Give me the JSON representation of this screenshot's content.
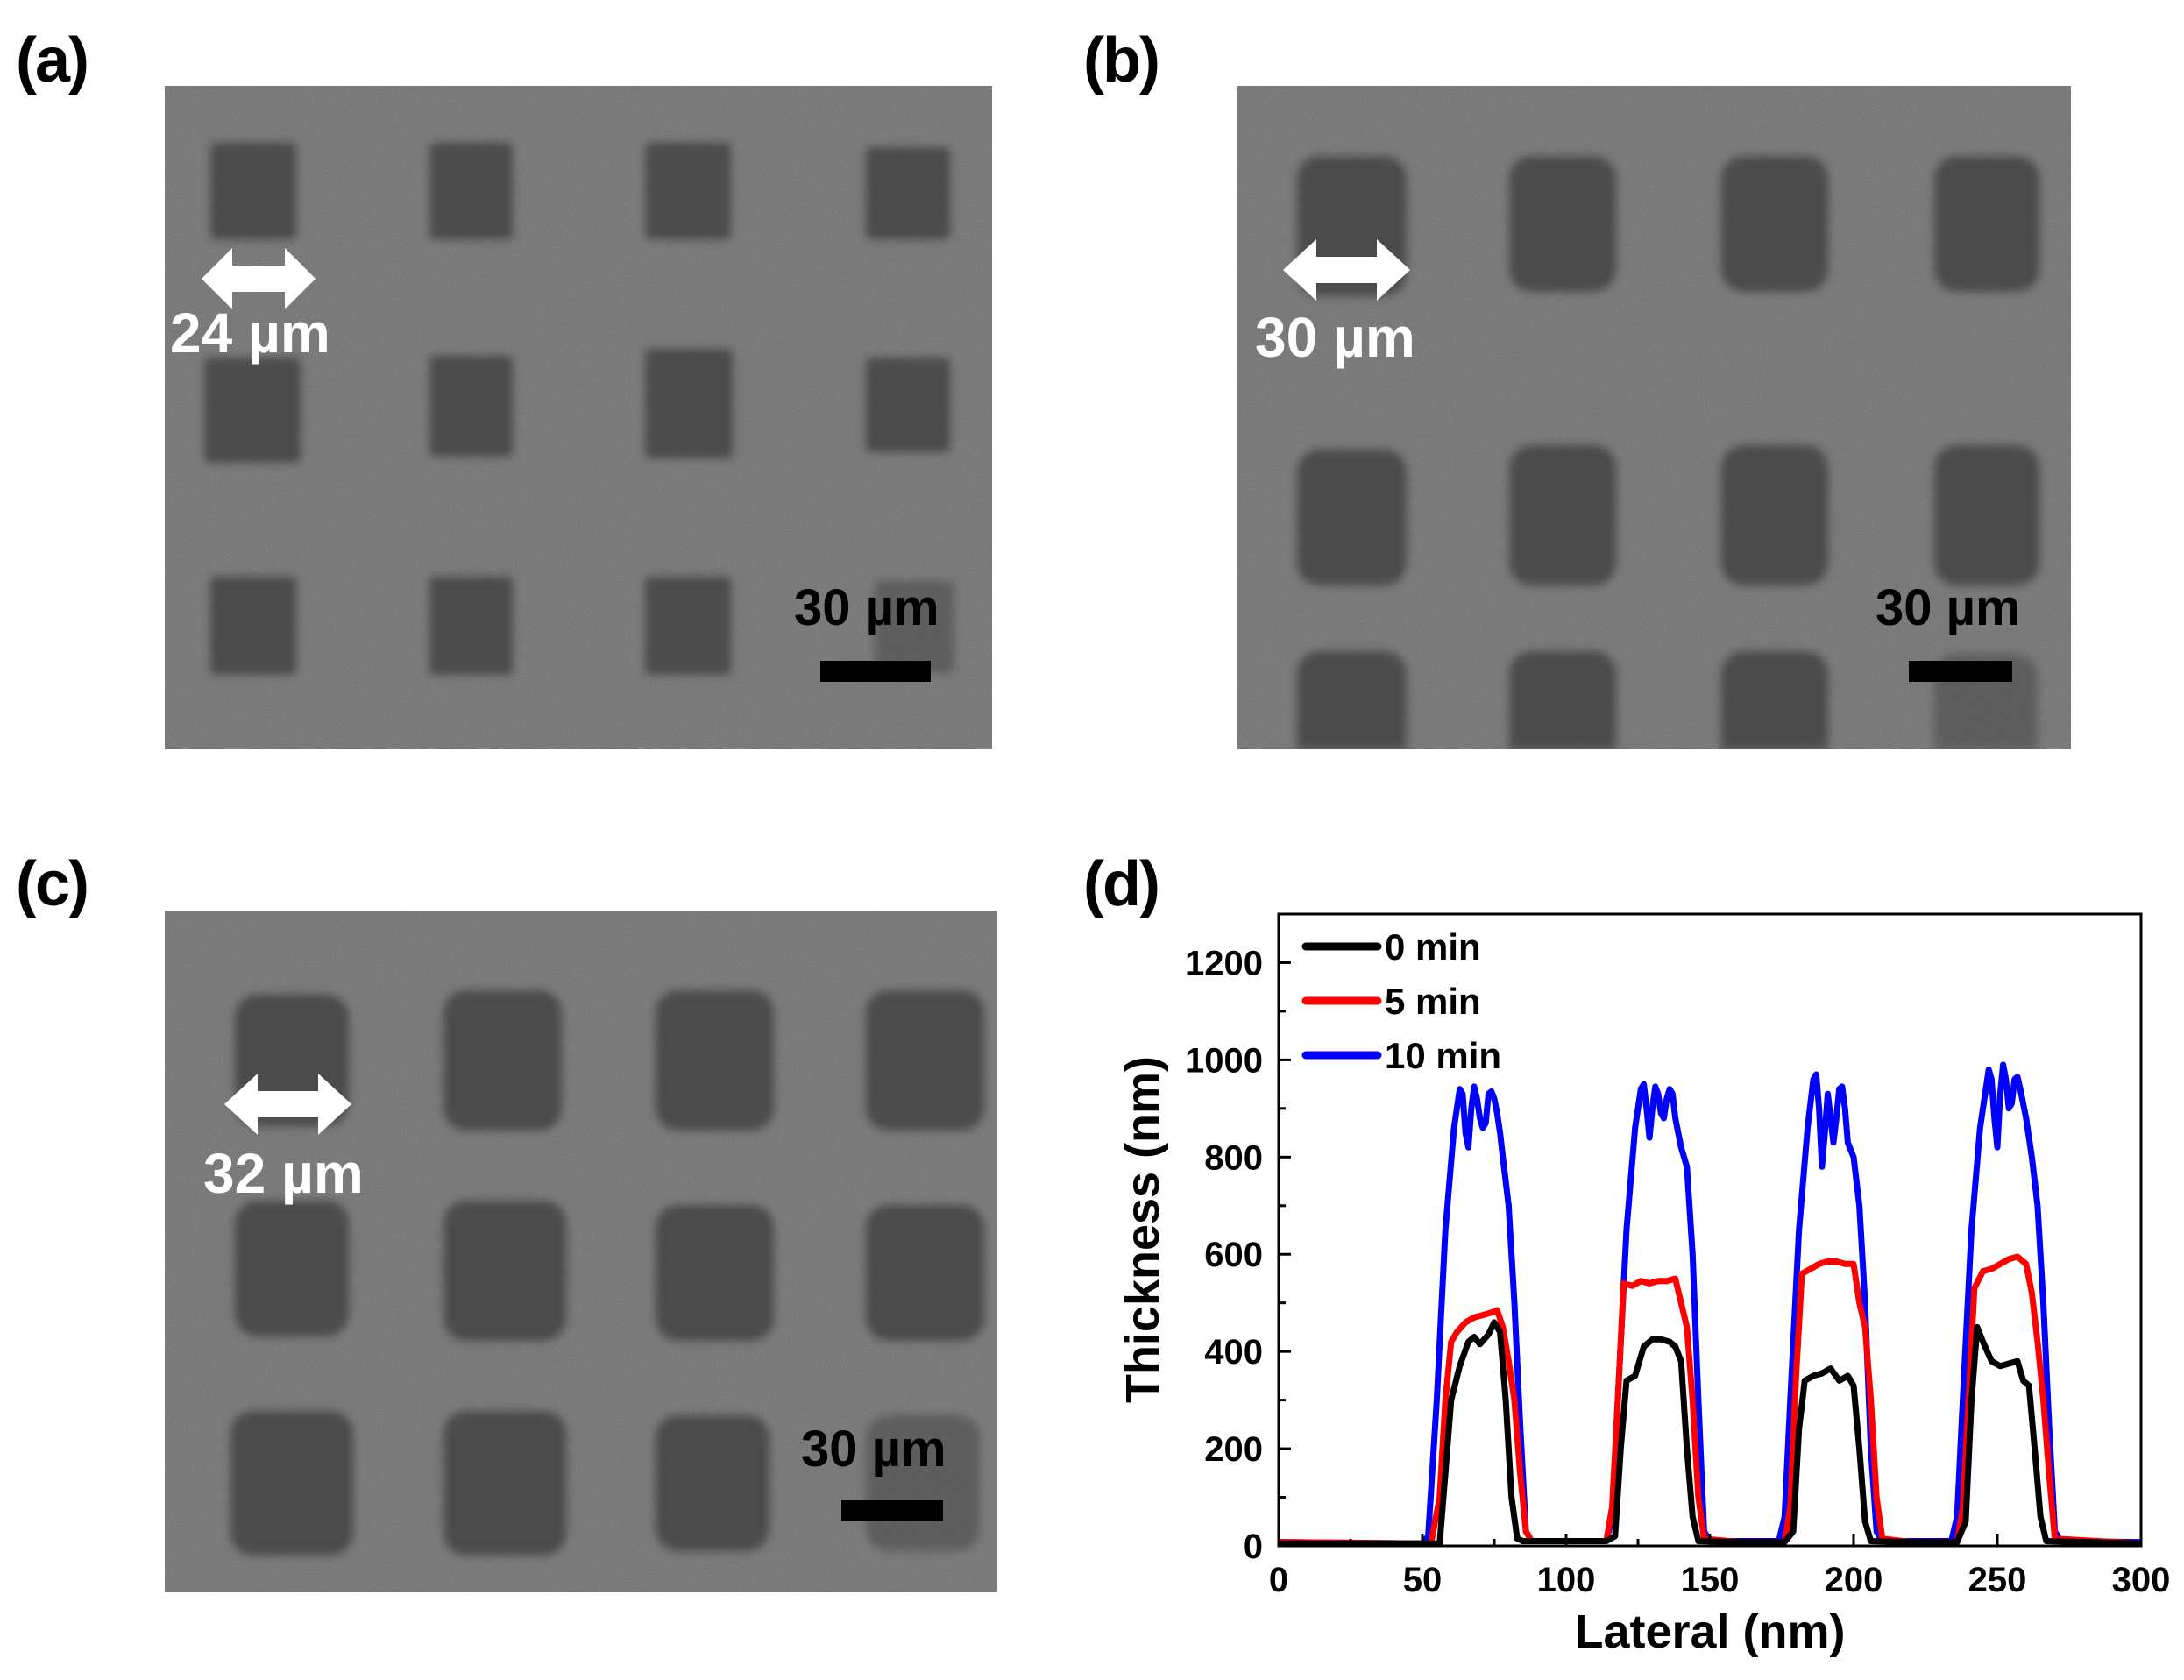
{
  "panels": {
    "a": {
      "label": "(a)",
      "dimension": "24 µm",
      "scale_bar": "30 µm"
    },
    "b": {
      "label": "(b)",
      "dimension": "30 µm",
      "scale_bar": "30 µm"
    },
    "c": {
      "label": "(c)",
      "dimension": "32 µm",
      "scale_bar": "30 µm"
    },
    "d": {
      "label": "(d)"
    }
  },
  "colors": {
    "series_0": "#000000",
    "series_5": "#ff0000",
    "series_10": "#0000ff",
    "sem_bg": "#6d6d6d",
    "sem_square": "#4b4b4b"
  },
  "chart_data": {
    "type": "line",
    "title": "",
    "xlabel": "Lateral (nm)",
    "ylabel": "Thickness (nm)",
    "xlim": [
      0,
      300
    ],
    "ylim": [
      0,
      1300
    ],
    "xticks": [
      0,
      50,
      100,
      150,
      200,
      250,
      300
    ],
    "yticks": [
      0,
      200,
      400,
      600,
      800,
      1000,
      1200
    ],
    "grid": false,
    "legend_position": "upper left",
    "series": [
      {
        "name": "0 min",
        "color": "#000000",
        "x": [
          0,
          50,
          56,
          58,
          60,
          63,
          66,
          68,
          70,
          73,
          75,
          77,
          79,
          81,
          83,
          85,
          100,
          114,
          117,
          119,
          121,
          124,
          127,
          130,
          133,
          136,
          138,
          140,
          142,
          144,
          146,
          160,
          176,
          179,
          181,
          183,
          186,
          189,
          192,
          195,
          198,
          200,
          202,
          204,
          206,
          220,
          236,
          239,
          241,
          243,
          245,
          248,
          251,
          254,
          257,
          259,
          261,
          263,
          265,
          267,
          300
        ],
        "y": [
          5,
          5,
          5,
          150,
          300,
          370,
          420,
          430,
          415,
          435,
          460,
          440,
          300,
          100,
          15,
          10,
          10,
          10,
          20,
          200,
          340,
          350,
          410,
          425,
          425,
          420,
          410,
          380,
          200,
          60,
          10,
          8,
          8,
          30,
          240,
          340,
          350,
          355,
          365,
          340,
          350,
          330,
          200,
          50,
          10,
          8,
          8,
          50,
          300,
          450,
          420,
          380,
          370,
          375,
          380,
          340,
          330,
          200,
          60,
          10,
          5
        ]
      },
      {
        "name": "5 min",
        "color": "#ff0000",
        "x": [
          0,
          50,
          53,
          56,
          58,
          60,
          62,
          65,
          68,
          71,
          74,
          76,
          78,
          80,
          82,
          84,
          86,
          88,
          100,
          114,
          116,
          118,
          120,
          123,
          126,
          129,
          132,
          135,
          138,
          140,
          142,
          144,
          146,
          148,
          160,
          176,
          178,
          180,
          182,
          185,
          188,
          191,
          194,
          197,
          200,
          202,
          204,
          206,
          208,
          210,
          220,
          236,
          238,
          240,
          242,
          245,
          248,
          251,
          254,
          257,
          260,
          262,
          264,
          266,
          268,
          270,
          300
        ],
        "y": [
          8,
          5,
          5,
          100,
          300,
          420,
          440,
          460,
          470,
          475,
          480,
          485,
          450,
          380,
          300,
          150,
          30,
          10,
          10,
          10,
          80,
          300,
          540,
          535,
          545,
          540,
          545,
          545,
          550,
          500,
          450,
          300,
          100,
          15,
          8,
          8,
          80,
          350,
          560,
          570,
          580,
          585,
          585,
          580,
          580,
          500,
          450,
          300,
          100,
          15,
          8,
          8,
          80,
          300,
          530,
          565,
          570,
          580,
          590,
          595,
          580,
          520,
          420,
          300,
          150,
          15,
          5
        ]
      },
      {
        "name": "10 min",
        "color": "#0000ff",
        "x": [
          0,
          50,
          52,
          55,
          58,
          61,
          63,
          64,
          65,
          66,
          67,
          68,
          69,
          70,
          71,
          72,
          73,
          74,
          75,
          76,
          77,
          78,
          80,
          82,
          84,
          86,
          88,
          90,
          100,
          114,
          116,
          118,
          121,
          124,
          126,
          127,
          128,
          129,
          130,
          131,
          132,
          133,
          134,
          135,
          136,
          137,
          138,
          140,
          142,
          144,
          146,
          148,
          150,
          160,
          174,
          176,
          178,
          181,
          184,
          186,
          187,
          188,
          189,
          190,
          191,
          192,
          193,
          194,
          195,
          196,
          197,
          198,
          200,
          202,
          204,
          206,
          208,
          210,
          220,
          234,
          236,
          238,
          241,
          244,
          246,
          247,
          248,
          249,
          250,
          251,
          252,
          253,
          254,
          255,
          256,
          257,
          258,
          260,
          262,
          264,
          266,
          268,
          270,
          272,
          300
        ],
        "y": [
          8,
          5,
          20,
          300,
          650,
          860,
          940,
          930,
          850,
          820,
          900,
          945,
          920,
          880,
          860,
          870,
          930,
          935,
          920,
          890,
          850,
          800,
          700,
          500,
          250,
          30,
          10,
          10,
          10,
          10,
          60,
          300,
          650,
          860,
          940,
          950,
          900,
          840,
          900,
          945,
          930,
          890,
          880,
          920,
          940,
          930,
          880,
          820,
          780,
          600,
          300,
          30,
          10,
          10,
          10,
          60,
          300,
          650,
          860,
          960,
          970,
          900,
          780,
          850,
          930,
          880,
          830,
          880,
          940,
          945,
          900,
          830,
          800,
          700,
          500,
          200,
          30,
          10,
          10,
          10,
          60,
          300,
          650,
          860,
          940,
          980,
          960,
          880,
          820,
          930,
          990,
          960,
          900,
          910,
          960,
          965,
          940,
          880,
          800,
          700,
          500,
          250,
          30,
          10,
          8
        ]
      }
    ]
  }
}
